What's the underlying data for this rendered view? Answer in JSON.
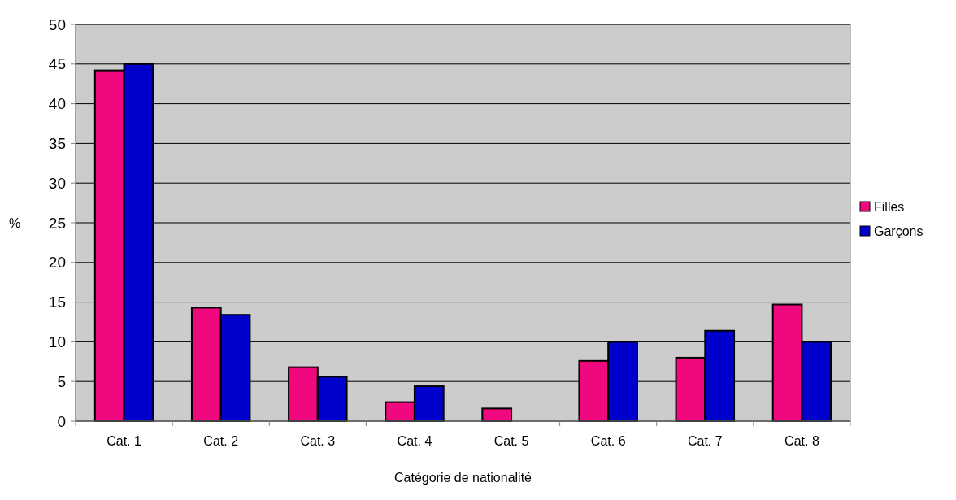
{
  "chart_data": {
    "type": "bar",
    "xlabel": "Catégorie de nationalité",
    "ylabel": "%",
    "categories": [
      "Cat. 1",
      "Cat. 2",
      "Cat. 3",
      "Cat. 4",
      "Cat. 5",
      "Cat. 6",
      "Cat. 7",
      "Cat. 8"
    ],
    "series": [
      {
        "name": "Filles",
        "color": "#f0087f",
        "values": [
          44.2,
          14.3,
          6.8,
          2.4,
          1.6,
          7.6,
          8.0,
          14.7
        ]
      },
      {
        "name": "Garçons",
        "color": "#0000cc",
        "values": [
          45,
          13.4,
          5.6,
          4.4,
          0,
          10.0,
          11.4,
          10.0
        ]
      }
    ],
    "ylim": [
      0,
      50
    ],
    "yticks": [
      0,
      5,
      10,
      15,
      20,
      25,
      30,
      35,
      40,
      45,
      50
    ],
    "grid": "y",
    "legend": "right"
  }
}
